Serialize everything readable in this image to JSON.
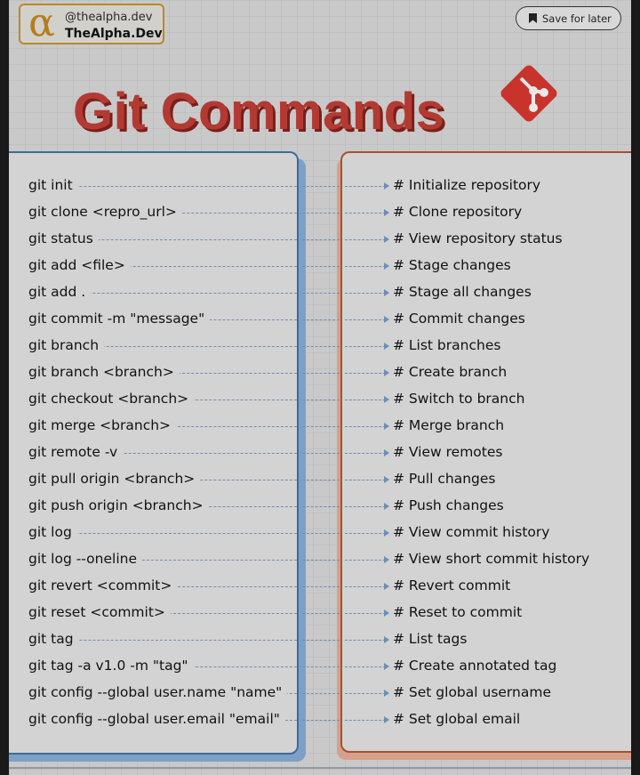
{
  "header": {
    "logo_glyph": "α",
    "handle": "@thealpha.dev",
    "brand_name": "TheAlpha.Dev",
    "save_label": "Save for later"
  },
  "title": "Git Commands",
  "colors": {
    "title": "#b33a32",
    "left_panel_border": "#3f6b9c",
    "right_panel_border": "#a4512f",
    "git_logo": "#c8332b",
    "brand_accent": "#b77d1a"
  },
  "commands": [
    {
      "command": "git init",
      "description": "# Initialize repository"
    },
    {
      "command": "git clone <repro_url>",
      "description": "# Clone repository"
    },
    {
      "command": "git status",
      "description": "# View repository status"
    },
    {
      "command": "git add <file>",
      "description": "# Stage changes"
    },
    {
      "command": "git add .",
      "description": "# Stage all changes"
    },
    {
      "command": "git commit -m \"message\"",
      "description": "# Commit changes"
    },
    {
      "command": "git branch",
      "description": "# List branches"
    },
    {
      "command": "git branch <branch>",
      "description": "# Create branch"
    },
    {
      "command": "git checkout <branch>",
      "description": "# Switch to branch"
    },
    {
      "command": "git merge <branch>",
      "description": "# Merge branch"
    },
    {
      "command": "git remote -v",
      "description": "# View remotes"
    },
    {
      "command": "git pull origin <branch>",
      "description": "# Pull changes"
    },
    {
      "command": "git push origin <branch>",
      "description": "# Push changes"
    },
    {
      "command": "git log",
      "description": "# View commit history"
    },
    {
      "command": "git log --oneline",
      "description": "# View short commit history"
    },
    {
      "command": "git revert <commit>",
      "description": "# Revert commit"
    },
    {
      "command": "git reset <commit>",
      "description": "# Reset to commit"
    },
    {
      "command": "git tag",
      "description": "# List tags"
    },
    {
      "command": "git tag -a v1.0 -m \"tag\"",
      "description": "# Create annotated tag"
    },
    {
      "command": "git config --global user.name \"name\"",
      "description": "# Set global username"
    },
    {
      "command": "git config --global user.email \"email\"",
      "description": "# Set global email"
    }
  ]
}
